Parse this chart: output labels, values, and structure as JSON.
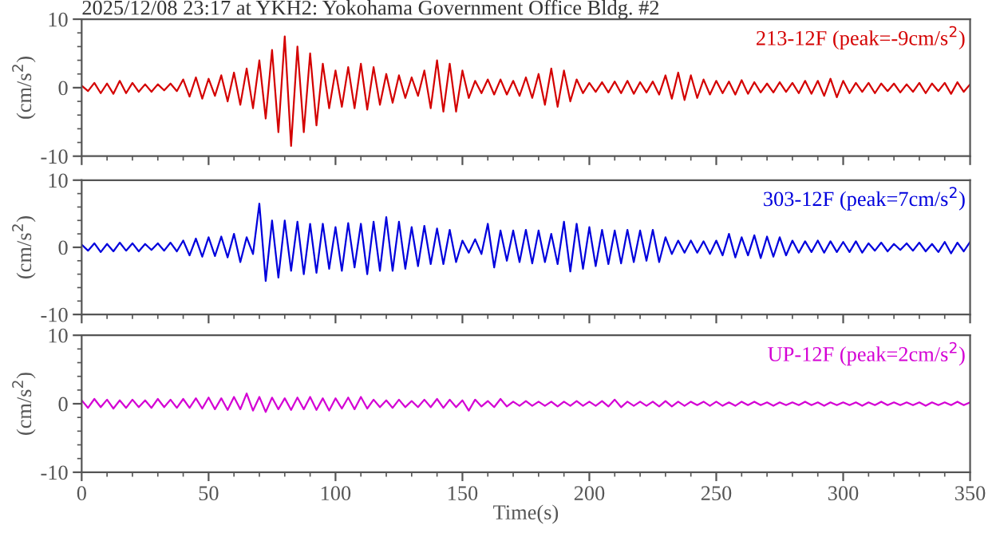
{
  "chart_data": [
    {
      "type": "line",
      "title": "2025/12/08 23:17 at YKH2: Yokohama Government Office Bldg. #2",
      "ylabel": "(cm/s$^{2}$)",
      "xlim": [
        0,
        350
      ],
      "xticks": [
        0,
        50,
        100,
        150,
        200,
        250,
        300,
        350
      ],
      "ylim": [
        -10,
        10
      ],
      "yticks": [
        -10,
        0,
        10
      ],
      "tick_labels": "y",
      "x": [
        0,
        2.5,
        5,
        7.5,
        10,
        12.5,
        15,
        17.5,
        20,
        22.5,
        25,
        27.5,
        30,
        32.5,
        35,
        37.5,
        40,
        42.5,
        45,
        47.5,
        50,
        52.5,
        55,
        57.5,
        60,
        62.5,
        65,
        67.5,
        70,
        72.5,
        75,
        77.5,
        80,
        82.5,
        85,
        87.5,
        90,
        92.5,
        95,
        97.5,
        100,
        102.5,
        105,
        107.5,
        110,
        112.5,
        115,
        117.5,
        120,
        122.5,
        125,
        127.5,
        130,
        132.5,
        135,
        137.5,
        140,
        142.5,
        145,
        147.5,
        150,
        152.5,
        155,
        157.5,
        160,
        162.5,
        165,
        167.5,
        170,
        172.5,
        175,
        177.5,
        180,
        182.5,
        185,
        187.5,
        190,
        192.5,
        195,
        197.5,
        200,
        202.5,
        205,
        207.5,
        210,
        212.5,
        215,
        217.5,
        220,
        222.5,
        225,
        227.5,
        230,
        232.5,
        235,
        237.5,
        240,
        242.5,
        245,
        247.5,
        250,
        252.5,
        255,
        257.5,
        260,
        262.5,
        265,
        267.5,
        270,
        272.5,
        275,
        277.5,
        280,
        282.5,
        285,
        287.5,
        290,
        292.5,
        295,
        297.5,
        300,
        302.5,
        305,
        307.5,
        310,
        312.5,
        315,
        317.5,
        320,
        322.5,
        325,
        327.5,
        330,
        332.5,
        335,
        337.5,
        340,
        342.5,
        345,
        347.5,
        350
      ],
      "series": [
        {
          "name": "213-12F (peak=-9cm/s$^{2}$)",
          "color": "#d40000",
          "values": [
            0.3,
            -0.5,
            0.7,
            -0.8,
            0.6,
            -0.9,
            1.0,
            -0.8,
            0.7,
            -0.6,
            0.5,
            -0.6,
            0.5,
            -0.4,
            0.6,
            -0.5,
            1.2,
            -1.3,
            1.5,
            -1.6,
            1.3,
            -1.2,
            1.8,
            -2.0,
            2.2,
            -2.5,
            2.8,
            -3.0,
            4.0,
            -4.5,
            5.5,
            -6.5,
            7.5,
            -8.5,
            6.0,
            -6.5,
            5.0,
            -5.5,
            3.5,
            -3.0,
            2.5,
            -2.8,
            3.0,
            -3.0,
            3.5,
            -3.2,
            3.0,
            -2.5,
            2.0,
            -2.2,
            1.8,
            -1.5,
            1.5,
            -1.2,
            2.5,
            -3.0,
            4.0,
            -3.5,
            3.5,
            -3.5,
            2.5,
            -1.5,
            1.0,
            -0.8,
            1.2,
            -1.0,
            1.2,
            -1.0,
            1.0,
            -1.2,
            1.5,
            -1.5,
            2.0,
            -2.5,
            2.8,
            -2.8,
            2.5,
            -2.0,
            1.2,
            -0.8,
            0.7,
            -0.6,
            0.8,
            -0.7,
            0.9,
            -0.8,
            1.0,
            -0.9,
            0.8,
            -0.7,
            0.9,
            -1.0,
            1.8,
            -1.6,
            2.2,
            -1.8,
            1.8,
            -1.5,
            1.2,
            -1.0,
            1.0,
            -0.8,
            0.9,
            -1.0,
            1.1,
            -0.9,
            0.8,
            -0.7,
            0.6,
            -0.7,
            0.8,
            -0.6,
            0.7,
            -0.8,
            1.0,
            -0.9,
            1.0,
            -1.2,
            1.3,
            -1.4,
            1.0,
            -0.8,
            0.7,
            -0.6,
            0.7,
            -0.8,
            0.6,
            -0.5,
            0.6,
            -0.7,
            0.5,
            -0.6,
            0.7,
            -0.8,
            0.6,
            -0.5,
            0.7,
            -0.9,
            0.8,
            -0.6,
            0.5
          ]
        }
      ]
    },
    {
      "type": "line",
      "ylabel": "(cm/s$^{2}$)",
      "xlim": [
        0,
        350
      ],
      "xticks": [
        0,
        50,
        100,
        150,
        200,
        250,
        300,
        350
      ],
      "ylim": [
        -10,
        10
      ],
      "yticks": [
        -10,
        0,
        10
      ],
      "tick_labels": "y",
      "x": [
        0,
        2.5,
        5,
        7.5,
        10,
        12.5,
        15,
        17.5,
        20,
        22.5,
        25,
        27.5,
        30,
        32.5,
        35,
        37.5,
        40,
        42.5,
        45,
        47.5,
        50,
        52.5,
        55,
        57.5,
        60,
        62.5,
        65,
        67.5,
        70,
        72.5,
        75,
        77.5,
        80,
        82.5,
        85,
        87.5,
        90,
        92.5,
        95,
        97.5,
        100,
        102.5,
        105,
        107.5,
        110,
        112.5,
        115,
        117.5,
        120,
        122.5,
        125,
        127.5,
        130,
        132.5,
        135,
        137.5,
        140,
        142.5,
        145,
        147.5,
        150,
        152.5,
        155,
        157.5,
        160,
        162.5,
        165,
        167.5,
        170,
        172.5,
        175,
        177.5,
        180,
        182.5,
        185,
        187.5,
        190,
        192.5,
        195,
        197.5,
        200,
        202.5,
        205,
        207.5,
        210,
        212.5,
        215,
        217.5,
        220,
        222.5,
        225,
        227.5,
        230,
        232.5,
        235,
        237.5,
        240,
        242.5,
        245,
        247.5,
        250,
        252.5,
        255,
        257.5,
        260,
        262.5,
        265,
        267.5,
        270,
        272.5,
        275,
        277.5,
        280,
        282.5,
        285,
        287.5,
        290,
        292.5,
        295,
        297.5,
        300,
        302.5,
        305,
        307.5,
        310,
        312.5,
        315,
        317.5,
        320,
        322.5,
        325,
        327.5,
        330,
        332.5,
        335,
        337.5,
        340,
        342.5,
        345,
        347.5,
        350
      ],
      "series": [
        {
          "name": "303-12F (peak=7cm/s$^{2}$)",
          "color": "#0000dd",
          "values": [
            0.4,
            -0.5,
            0.6,
            -0.7,
            0.5,
            -0.6,
            0.7,
            -0.5,
            0.6,
            -0.6,
            0.5,
            -0.4,
            0.6,
            -0.5,
            0.7,
            -0.6,
            1.0,
            -1.2,
            1.3,
            -1.4,
            1.5,
            -1.3,
            1.6,
            -1.5,
            2.0,
            -2.2,
            1.5,
            -1.0,
            6.5,
            -5.0,
            4.0,
            -4.5,
            4.0,
            -3.5,
            3.8,
            -4.0,
            3.5,
            -3.8,
            3.5,
            -3.2,
            3.0,
            -3.5,
            3.6,
            -3.0,
            3.5,
            -4.0,
            3.8,
            -3.5,
            4.5,
            -3.5,
            3.8,
            -3.2,
            3.0,
            -2.8,
            3.2,
            -2.5,
            2.8,
            -2.5,
            2.6,
            -2.2,
            1.0,
            -0.8,
            1.2,
            -1.0,
            3.5,
            -3.0,
            2.5,
            -2.0,
            2.5,
            -2.2,
            2.6,
            -2.4,
            2.5,
            -2.2,
            2.0,
            -2.5,
            3.8,
            -3.6,
            3.5,
            -3.2,
            3.0,
            -2.8,
            2.6,
            -2.5,
            2.5,
            -2.4,
            2.6,
            -2.2,
            2.5,
            -2.0,
            2.6,
            -2.2,
            1.5,
            -1.0,
            1.0,
            -0.8,
            1.0,
            -0.8,
            0.9,
            -1.0,
            1.0,
            -1.2,
            2.0,
            -1.5,
            1.5,
            -1.2,
            1.8,
            -1.6,
            1.6,
            -1.4,
            1.5,
            -1.2,
            1.0,
            -0.8,
            0.9,
            -0.7,
            1.0,
            -0.8,
            0.9,
            -0.7,
            0.8,
            -0.7,
            0.9,
            -0.8,
            0.6,
            -0.5,
            0.7,
            -0.6,
            0.5,
            -0.4,
            0.6,
            -0.5,
            0.7,
            -0.6,
            0.5,
            -0.7,
            0.8,
            -0.9,
            0.7,
            -0.6,
            0.8
          ]
        }
      ]
    },
    {
      "type": "line",
      "xlabel": "Time(s)",
      "ylabel": "(cm/s$^{2}$)",
      "xlim": [
        0,
        350
      ],
      "xticks": [
        0,
        50,
        100,
        150,
        200,
        250,
        300,
        350
      ],
      "ylim": [
        -10,
        10
      ],
      "yticks": [
        -10,
        0,
        10
      ],
      "x": [
        0,
        2.5,
        5,
        7.5,
        10,
        12.5,
        15,
        17.5,
        20,
        22.5,
        25,
        27.5,
        30,
        32.5,
        35,
        37.5,
        40,
        42.5,
        45,
        47.5,
        50,
        52.5,
        55,
        57.5,
        60,
        62.5,
        65,
        67.5,
        70,
        72.5,
        75,
        77.5,
        80,
        82.5,
        85,
        87.5,
        90,
        92.5,
        95,
        97.5,
        100,
        102.5,
        105,
        107.5,
        110,
        112.5,
        115,
        117.5,
        120,
        122.5,
        125,
        127.5,
        130,
        132.5,
        135,
        137.5,
        140,
        142.5,
        145,
        147.5,
        150,
        152.5,
        155,
        157.5,
        160,
        162.5,
        165,
        167.5,
        170,
        172.5,
        175,
        177.5,
        180,
        182.5,
        185,
        187.5,
        190,
        192.5,
        195,
        197.5,
        200,
        202.5,
        205,
        207.5,
        210,
        212.5,
        215,
        217.5,
        220,
        222.5,
        225,
        227.5,
        230,
        232.5,
        235,
        237.5,
        240,
        242.5,
        245,
        247.5,
        250,
        252.5,
        255,
        257.5,
        260,
        262.5,
        265,
        267.5,
        270,
        272.5,
        275,
        277.5,
        280,
        282.5,
        285,
        287.5,
        290,
        292.5,
        295,
        297.5,
        300,
        302.5,
        305,
        307.5,
        310,
        312.5,
        315,
        317.5,
        320,
        322.5,
        325,
        327.5,
        330,
        332.5,
        335,
        337.5,
        340,
        342.5,
        345,
        347.5,
        350
      ],
      "series": [
        {
          "name": "UP-12F (peak=2cm/s$^{2}$)",
          "color": "#d400d4",
          "values": [
            0.5,
            -0.6,
            0.7,
            -0.5,
            0.6,
            -0.7,
            0.5,
            -0.6,
            0.6,
            -0.5,
            0.5,
            -0.6,
            0.7,
            -0.5,
            0.6,
            -0.6,
            0.7,
            -0.6,
            0.8,
            -0.7,
            0.9,
            -0.8,
            0.8,
            -0.9,
            1.0,
            -0.8,
            1.5,
            -1.0,
            1.0,
            -1.2,
            0.9,
            -0.8,
            0.8,
            -0.9,
            0.9,
            -0.8,
            1.0,
            -0.9,
            0.8,
            -1.0,
            0.8,
            -0.7,
            0.9,
            -0.8,
            1.0,
            -0.7,
            0.6,
            -0.5,
            0.5,
            -0.6,
            0.6,
            -0.5,
            0.4,
            -0.5,
            0.6,
            -0.5,
            0.7,
            -0.6,
            0.6,
            -0.5,
            0.5,
            -1.0,
            0.6,
            -0.4,
            0.4,
            -0.5,
            0.7,
            -0.4,
            0.3,
            -0.3,
            0.4,
            -0.3,
            0.3,
            -0.3,
            0.3,
            -0.4,
            0.3,
            -0.3,
            0.4,
            -0.3,
            0.3,
            -0.3,
            0.4,
            -0.4,
            0.6,
            -0.5,
            0.3,
            -0.3,
            0.3,
            -0.3,
            0.3,
            -0.4,
            0.4,
            -0.4,
            0.3,
            -0.3,
            0.3,
            -0.2,
            0.3,
            -0.3,
            0.3,
            -0.3,
            0.2,
            -0.3,
            0.3,
            -0.2,
            0.3,
            -0.2,
            0.2,
            -0.3,
            0.2,
            -0.2,
            0.2,
            -0.2,
            0.3,
            -0.2,
            0.2,
            -0.3,
            0.2,
            -0.2,
            0.2,
            -0.2,
            0.2,
            -0.3,
            0.2,
            -0.2,
            0.3,
            -0.2,
            0.2,
            -0.2,
            0.2,
            -0.2,
            0.2,
            -0.3,
            0.2,
            -0.2,
            0.2,
            -0.2,
            0.3,
            -0.2,
            0.2
          ]
        }
      ]
    }
  ]
}
